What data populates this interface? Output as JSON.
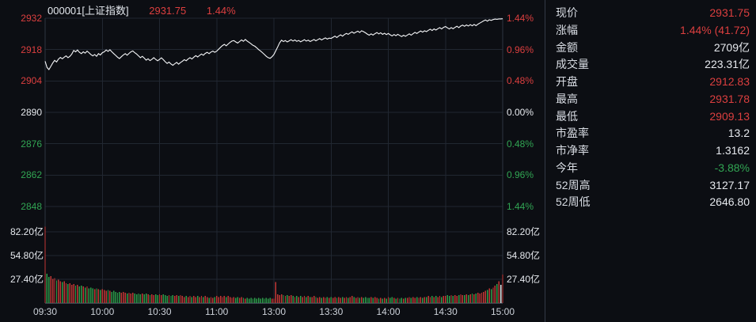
{
  "header": {
    "code_name": "000001[上证指数]",
    "price": "2931.75",
    "change_pct": "1.44%"
  },
  "colors": {
    "up": "#dc3f3f",
    "down": "#31a553",
    "flat": "#e6e9ee",
    "bar_up": "#c23734",
    "bar_down": "#2d9e4a",
    "bar_flat": "#e8e8e8",
    "line": "#f5f6f8",
    "grid": "#212731",
    "border": "#2e3642",
    "axis": "#3c4450",
    "background": "#0c0e13",
    "time_text": "#ccd1d9"
  },
  "price_axis": {
    "left": [
      {
        "text": "2932",
        "c": "up"
      },
      {
        "text": "2918",
        "c": "up"
      },
      {
        "text": "2904",
        "c": "up"
      },
      {
        "text": "2890",
        "c": "flat"
      },
      {
        "text": "2876",
        "c": "down"
      },
      {
        "text": "2862",
        "c": "down"
      },
      {
        "text": "2848",
        "c": "down"
      }
    ],
    "right": [
      {
        "text": "1.44%",
        "c": "up"
      },
      {
        "text": "0.96%",
        "c": "up"
      },
      {
        "text": "0.48%",
        "c": "up"
      },
      {
        "text": "0.00%",
        "c": "flat"
      },
      {
        "text": "0.48%",
        "c": "down"
      },
      {
        "text": "0.96%",
        "c": "down"
      },
      {
        "text": "1.44%",
        "c": "down"
      }
    ]
  },
  "volume_axis": {
    "labels": [
      "82.20亿",
      "54.80亿",
      "27.40亿"
    ]
  },
  "time_axis": {
    "labels": [
      "09:30",
      "10:00",
      "10:30",
      "11:00",
      "13:00",
      "13:30",
      "14:00",
      "14:30",
      "15:00"
    ]
  },
  "side_panel": {
    "rows": [
      {
        "label": "现价",
        "value": "2931.75",
        "c": "up"
      },
      {
        "label": "涨幅",
        "value": "1.44% (41.72)",
        "c": "up"
      },
      {
        "label": "金额",
        "value": "2709亿",
        "c": "flat"
      },
      {
        "label": "成交量",
        "value": "223.31亿",
        "c": "flat"
      },
      {
        "label": "开盘",
        "value": "2912.83",
        "c": "up"
      },
      {
        "label": "最高",
        "value": "2931.78",
        "c": "up"
      },
      {
        "label": "最低",
        "value": "2909.13",
        "c": "up"
      },
      {
        "label": "市盈率",
        "value": "13.2",
        "c": "flat"
      },
      {
        "label": "市净率",
        "value": "1.3162",
        "c": "flat"
      },
      {
        "label": "今年",
        "value": "-3.88%",
        "c": "down"
      },
      {
        "label": "52周高",
        "value": "3127.17",
        "c": "flat"
      },
      {
        "label": "52周低",
        "value": "2646.80",
        "c": "flat"
      }
    ]
  },
  "chart_data": {
    "type": "line",
    "title": "000001[上证指数] intraday (分时)",
    "prev_close": 2890.03,
    "open": 2912.83,
    "high": 2931.78,
    "low": 2909.13,
    "close": 2931.75,
    "change_pct": 1.44,
    "change_pts": 41.72,
    "price_ylim": [
      2848,
      2932
    ],
    "pct_ylim": [
      -1.44,
      1.44
    ],
    "volume_ylim_yi": [
      0,
      109.6
    ],
    "x_minutes_total": 240,
    "session_note": "09:30-11:30 and 13:00-15:00, lunch break collapsed at midpoint",
    "grid": "on",
    "price_values": [
      2912.8,
      2910.0,
      2909.1,
      2910.5,
      2912.0,
      2913.2,
      2912.5,
      2913.8,
      2914.5,
      2913.9,
      2914.6,
      2915.2,
      2914.4,
      2915.0,
      2916.0,
      2917.6,
      2917.0,
      2917.8,
      2916.8,
      2916.2,
      2917.0,
      2916.4,
      2917.3,
      2916.6,
      2915.8,
      2915.2,
      2915.8,
      2915.0,
      2916.2,
      2915.6,
      2916.6,
      2917.0,
      2917.8,
      2917.2,
      2917.9,
      2917.0,
      2916.2,
      2915.4,
      2914.6,
      2914.0,
      2914.8,
      2915.6,
      2916.2,
      2915.5,
      2916.3,
      2917.0,
      2917.4,
      2916.6,
      2916.0,
      2915.2,
      2914.4,
      2915.0,
      2914.2,
      2913.3,
      2913.9,
      2913.1,
      2913.7,
      2914.4,
      2913.6,
      2913.0,
      2913.6,
      2914.3,
      2913.5,
      2912.6,
      2911.8,
      2912.4,
      2911.6,
      2911.0,
      2911.7,
      2912.3,
      2911.5,
      2912.2,
      2912.8,
      2913.5,
      2913.0,
      2913.8,
      2914.4,
      2913.8,
      2914.6,
      2915.3,
      2914.7,
      2915.4,
      2916.0,
      2915.5,
      2916.3,
      2916.8,
      2916.2,
      2916.9,
      2917.3,
      2916.8,
      2917.3,
      2918.2,
      2919.0,
      2919.8,
      2920.3,
      2919.7,
      2920.5,
      2921.2,
      2921.8,
      2922.0,
      2921.4,
      2920.9,
      2921.6,
      2922.3,
      2921.7,
      2922.5,
      2921.8,
      2921.2,
      2920.6,
      2919.9,
      2919.5,
      2918.8,
      2918.0,
      2917.4,
      2916.6,
      2915.8,
      2915.0,
      2914.4,
      2914.1,
      2914.8,
      2915.8,
      2917.5,
      2919.2,
      2921.0,
      2922.2,
      2921.6,
      2922.0,
      2921.4,
      2921.9,
      2922.4,
      2921.8,
      2922.3,
      2921.7,
      2922.1,
      2921.5,
      2921.9,
      2922.4,
      2921.8,
      2922.2,
      2921.6,
      2922.0,
      2922.5,
      2921.9,
      2922.4,
      2922.9,
      2922.3,
      2922.8,
      2923.2,
      2922.7,
      2923.1,
      2923.0,
      2923.5,
      2924.0,
      2923.4,
      2924.1,
      2924.6,
      2924.0,
      2924.7,
      2925.2,
      2924.8,
      2925.4,
      2925.9,
      2925.3,
      2925.8,
      2926.2,
      2925.6,
      2926.4,
      2926.0,
      2925.5,
      2924.9,
      2924.4,
      2925.0,
      2924.5,
      2925.1,
      2925.6,
      2925.0,
      2925.5,
      2924.8,
      2925.3,
      2924.7,
      2925.2,
      2924.6,
      2924.1,
      2924.7,
      2924.2,
      2924.8,
      2924.3,
      2923.8,
      2924.4,
      2923.9,
      2924.5,
      2925.0,
      2924.4,
      2925.1,
      2925.7,
      2925.2,
      2925.8,
      2926.3,
      2925.8,
      2926.4,
      2926.0,
      2926.6,
      2927.1,
      2926.5,
      2927.2,
      2926.7,
      2927.3,
      2927.8,
      2927.2,
      2927.9,
      2928.3,
      2927.7,
      2927.2,
      2927.8,
      2927.3,
      2927.9,
      2928.4,
      2927.8,
      2928.5,
      2928.9,
      2928.4,
      2929.0,
      2928.5,
      2929.1,
      2928.6,
      2929.2,
      2928.7,
      2929.3,
      2929.8,
      2930.3,
      2930.8,
      2931.2,
      2930.7,
      2931.3,
      2931.0,
      2931.4,
      2931.6,
      2931.5,
      2931.7,
      2931.7,
      2931.75
    ],
    "volume_values_yi": [
      88,
      34,
      30,
      31,
      28,
      29,
      26,
      27,
      25,
      24,
      25,
      23,
      22,
      23,
      21,
      22,
      20,
      21,
      19,
      20,
      19,
      18,
      19,
      17,
      18,
      17,
      16,
      17,
      16,
      15,
      16,
      15,
      14,
      15,
      14,
      13,
      14,
      13,
      12,
      13,
      12,
      13,
      12,
      11,
      12,
      11,
      12,
      11,
      10,
      11,
      10,
      11,
      10,
      11,
      10,
      9,
      10,
      9,
      10,
      9,
      10,
      9,
      10,
      9,
      8,
      9,
      8,
      9,
      8,
      9,
      8,
      9,
      8,
      7,
      8,
      7,
      8,
      7,
      8,
      7,
      8,
      7,
      8,
      7,
      8,
      7,
      6,
      7,
      6,
      7,
      8,
      7,
      8,
      7,
      8,
      7,
      8,
      7,
      6,
      7,
      6,
      7,
      6,
      7,
      6,
      5,
      6,
      5,
      6,
      5,
      6,
      5,
      6,
      5,
      6,
      5,
      6,
      5,
      6,
      5,
      5,
      24,
      10,
      9,
      10,
      9,
      8,
      9,
      8,
      9,
      8,
      7,
      8,
      7,
      8,
      7,
      8,
      7,
      8,
      7,
      7,
      8,
      7,
      6,
      7,
      6,
      7,
      6,
      7,
      6,
      7,
      6,
      7,
      6,
      7,
      6,
      7,
      6,
      7,
      6,
      7,
      8,
      7,
      6,
      7,
      6,
      7,
      6,
      7,
      6,
      6,
      7,
      6,
      7,
      6,
      5,
      6,
      5,
      6,
      5,
      7,
      6,
      7,
      6,
      5,
      6,
      5,
      6,
      5,
      6,
      6,
      7,
      6,
      7,
      6,
      7,
      6,
      7,
      6,
      7,
      7,
      8,
      7,
      8,
      7,
      8,
      7,
      8,
      7,
      8,
      8,
      9,
      8,
      9,
      8,
      9,
      8,
      9,
      10,
      9,
      9,
      10,
      9,
      10,
      11,
      10,
      11,
      12,
      11,
      12,
      13,
      14,
      15,
      17,
      16,
      18,
      20,
      22,
      25,
      21,
      33
    ]
  }
}
